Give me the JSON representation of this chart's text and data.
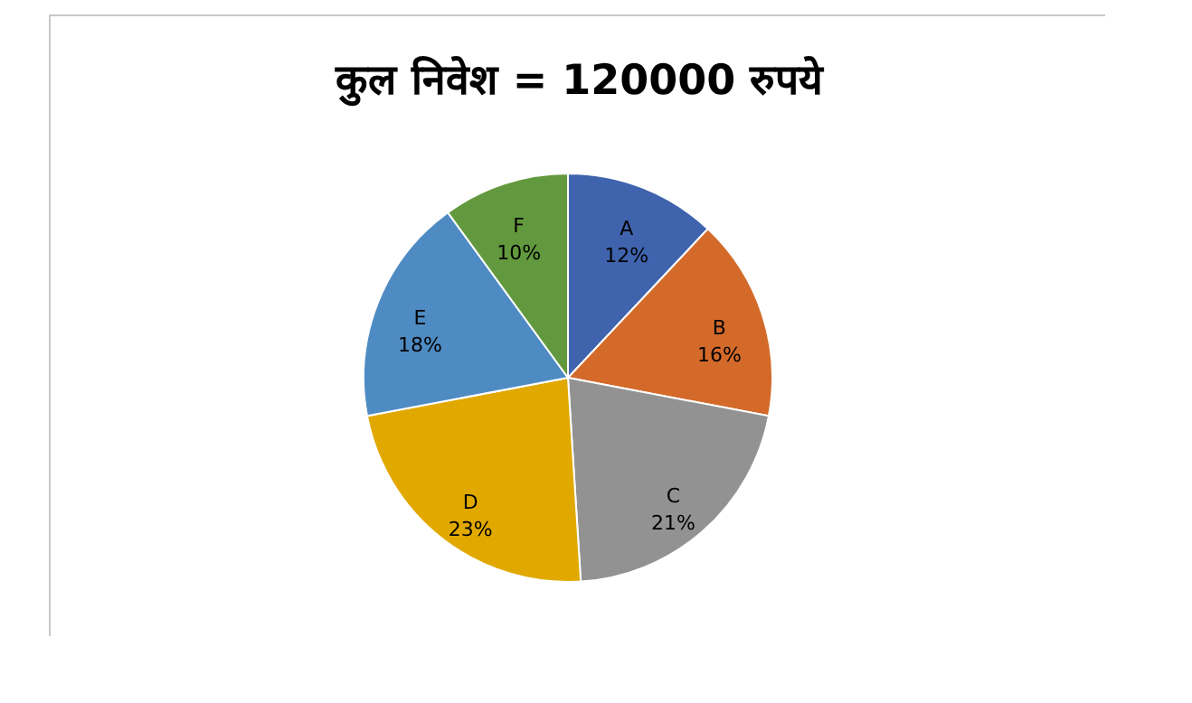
{
  "chart_data": {
    "type": "pie",
    "title": "कुल निवेश = 120000 रुपये",
    "categories": [
      "A",
      "B",
      "C",
      "D",
      "E",
      "F"
    ],
    "values": [
      12,
      16,
      21,
      23,
      18,
      10
    ],
    "value_labels": [
      "12%",
      "16%",
      "21%",
      "23%",
      "18%",
      "10%"
    ],
    "colors": [
      "#3f63ad",
      "#d46a2a",
      "#929292",
      "#e1a900",
      "#4f8bc3",
      "#63993e"
    ]
  }
}
